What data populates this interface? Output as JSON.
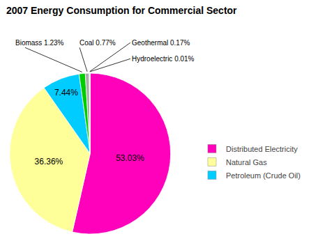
{
  "chart_data": {
    "type": "pie",
    "title": "2007 Energy Consumption for Commercial Sector",
    "categories": [
      "Distributed Electricity",
      "Natural Gas",
      "Petroleum (Crude Oil)",
      null,
      null,
      null,
      null
    ],
    "values": [
      53.03,
      36.36,
      7.44,
      1.23,
      0.77,
      0.17,
      0.01
    ],
    "colors": [
      "#FF00BB",
      "#FFFF99",
      "#00CCFF",
      "#00CC00",
      "#AAAAAA",
      "#CCCCCC",
      "#000099"
    ],
    "data_labels": true,
    "value_labels": [
      "53.03%",
      "36.36%",
      "7.44%",
      "Biomass 1.23%",
      "Coal 0.77%",
      "Geothermal 0.17%",
      "Hydroelectric 0.01%"
    ],
    "legend": "right"
  }
}
